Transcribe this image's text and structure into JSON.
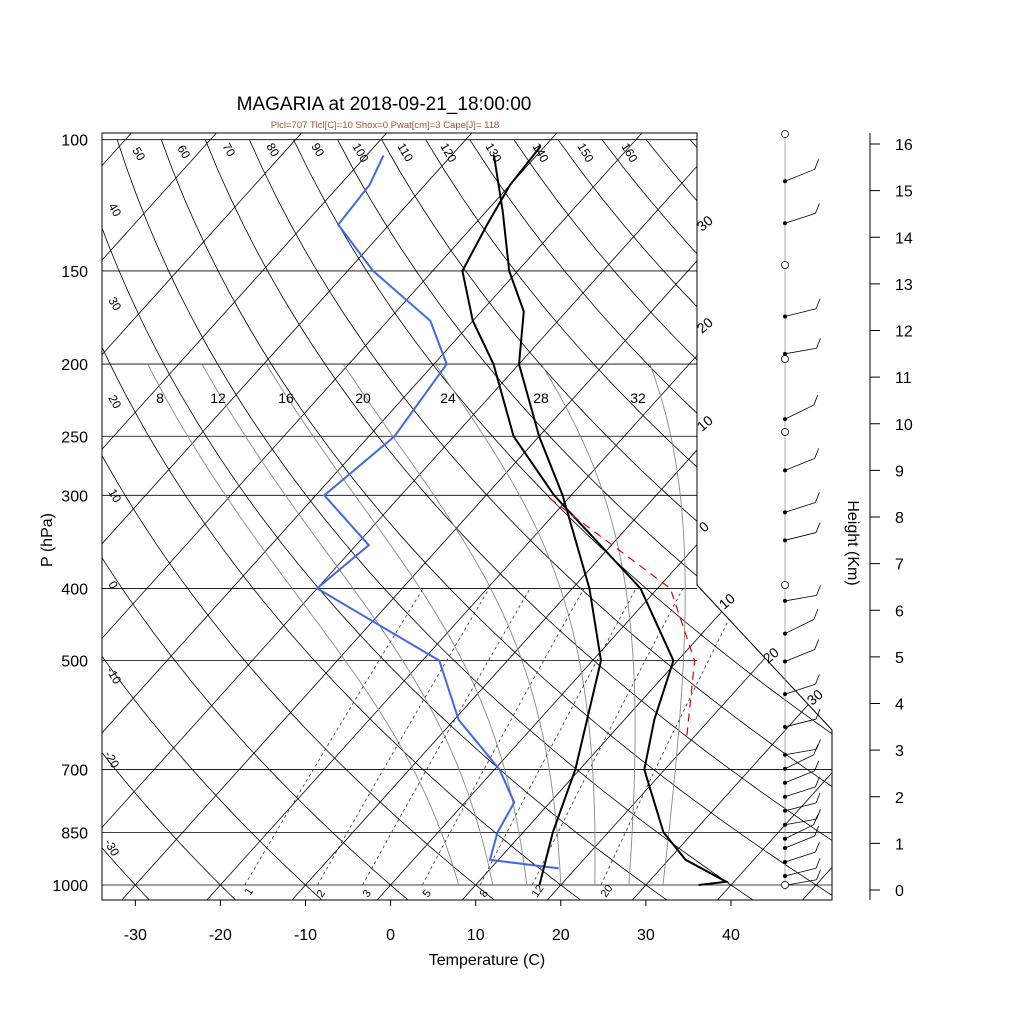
{
  "chart_data": {
    "type": "line",
    "subtype": "skew-t log-p sounding",
    "title": "MAGARIA at 2018-09-21_18:00:00",
    "subtitle": "Plcl=707 Tlcl[C]=10 Shox=0 Pwat[cm]=3 Cape[J]= 118",
    "xlabel": "Temperature (C)",
    "ylabel": "P (hPa)",
    "y2label": "Height (Km)",
    "pressure_ticks": [
      100,
      150,
      200,
      250,
      300,
      400,
      500,
      700,
      850,
      1000
    ],
    "temperature_ticks": [
      -30,
      -20,
      -10,
      0,
      10,
      20,
      30,
      40
    ],
    "height_ticks_km": [
      0,
      1,
      2,
      3,
      4,
      5,
      6,
      7,
      8,
      9,
      10,
      11,
      12,
      13,
      14,
      15,
      16
    ],
    "series": [
      {
        "name": "Temperature",
        "color": "#000000",
        "points": [
          [
            1000,
            36.2
          ],
          [
            990,
            39.1
          ],
          [
            925,
            32.0
          ],
          [
            850,
            26.5
          ],
          [
            700,
            17.6
          ],
          [
            600,
            13.5
          ],
          [
            500,
            9.5
          ],
          [
            400,
            -2.0
          ],
          [
            300,
            -22.0
          ],
          [
            250,
            -33.0
          ],
          [
            200,
            -43.0
          ],
          [
            175,
            -50.0
          ],
          [
            150,
            -56.5
          ],
          [
            130,
            -58.5
          ],
          [
            115,
            -60.0
          ],
          [
            102,
            -60.5
          ]
        ]
      },
      {
        "name": "Dewpoint",
        "color": "#4169e1",
        "points": [
          [
            950,
            18.0
          ],
          [
            925,
            9.0
          ],
          [
            850,
            7.0
          ],
          [
            775,
            5.8
          ],
          [
            700,
            0.6
          ],
          [
            600,
            -9.5
          ],
          [
            500,
            -18.0
          ],
          [
            400,
            -40.0
          ],
          [
            350,
            -38.5
          ],
          [
            300,
            -49.0
          ],
          [
            250,
            -47.0
          ],
          [
            200,
            -48.5
          ],
          [
            175,
            -55.0
          ],
          [
            150,
            -67.0
          ],
          [
            130,
            -76.0
          ],
          [
            115,
            -76.5
          ],
          [
            105,
            -78.0
          ]
        ]
      },
      {
        "name": "Parcel",
        "color": "#000000",
        "points": [
          [
            1000,
            17.5
          ],
          [
            850,
            13.5
          ],
          [
            700,
            9.5
          ],
          [
            500,
            1.0
          ],
          [
            400,
            -8.0
          ],
          [
            300,
            -21.0
          ],
          [
            250,
            -30.0
          ],
          [
            200,
            -40.0
          ],
          [
            170,
            -45.0
          ],
          [
            150,
            -51.0
          ],
          [
            125,
            -58.0
          ],
          [
            105,
            -65.0
          ]
        ]
      },
      {
        "name": "Virtual parcel",
        "color": "#dd0000",
        "dashed": true,
        "points": [
          [
            630,
            19.0
          ],
          [
            500,
            12.0
          ],
          [
            400,
            1.5
          ],
          [
            300,
            -23.0
          ]
        ]
      }
    ],
    "isotherm_labels": [
      "-10",
      "-20",
      "-30",
      "0",
      "10",
      "20",
      "30"
    ],
    "dry_adiabat_labels": [
      "-30",
      "-20",
      "-10",
      "0",
      "10",
      "20",
      "30",
      "40",
      "50",
      "60",
      "70",
      "80",
      "90",
      "100",
      "110",
      "120",
      "130",
      "140",
      "150",
      "160"
    ],
    "moist_adiabat_labels": [
      "8",
      "12",
      "16",
      "20",
      "24",
      "28",
      "32"
    ],
    "mixing_ratio_labels": [
      "1",
      "2",
      "3",
      "5",
      "8",
      "12",
      "20"
    ],
    "wind_heights_km": [
      0.1,
      0.3,
      0.6,
      0.9,
      1.1,
      1.4,
      1.7,
      2.0,
      2.3,
      2.6,
      2.9,
      3.5,
      4.2,
      4.9,
      5.5,
      6.2,
      7.5,
      8.1,
      9.0,
      10.1,
      11.5,
      12.3,
      14.3,
      15.2
    ]
  }
}
